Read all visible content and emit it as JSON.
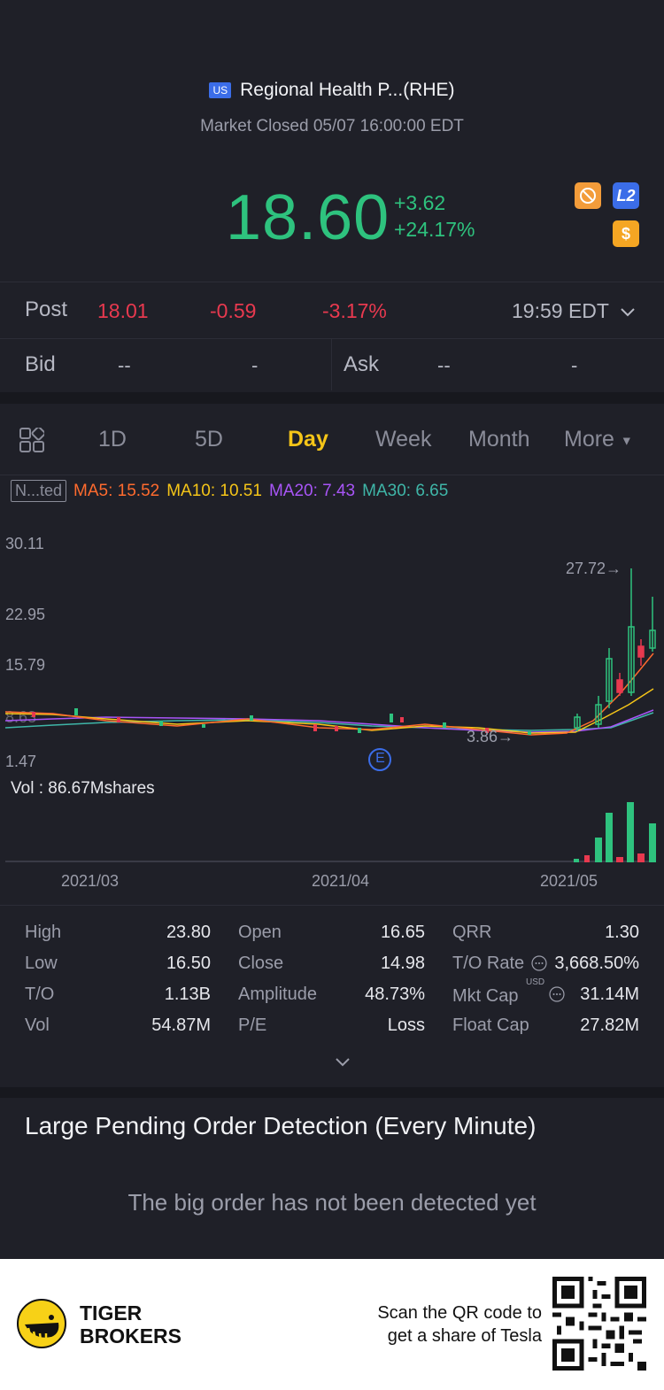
{
  "header": {
    "market_badge": "US",
    "title": "Regional Health P...(RHE)",
    "status": "Market Closed 05/07 16:00:00 EDT",
    "price": "18.60",
    "change_abs": "+3.62",
    "change_pct": "+24.17%",
    "icons": [
      "no-trade-icon",
      "level2-icon",
      "dollar-icon"
    ],
    "l2_label": "L2",
    "dollar_label": "$"
  },
  "post": {
    "label": "Post",
    "price": "18.01",
    "change": "-0.59",
    "pct": "-3.17%",
    "time": "19:59 EDT"
  },
  "bidask": {
    "bid_label": "Bid",
    "bid_price": "--",
    "bid_size": "-",
    "ask_label": "Ask",
    "ask_price": "--",
    "ask_size": "-"
  },
  "tabs": [
    "1D",
    "5D",
    "Day",
    "Week",
    "Month",
    "More"
  ],
  "active_tab": "Day",
  "indicators": {
    "adjust": "N...ted",
    "ma5": "MA5: 15.52",
    "ma10": "MA10: 10.51",
    "ma20": "MA20: 7.43",
    "ma30": "MA30: 6.65",
    "colors": {
      "ma5": "#ff6b2e",
      "ma10": "#f5c518",
      "ma20": "#a855f7",
      "ma30": "#3fb6a8"
    }
  },
  "chart_data": {
    "type": "candlestick",
    "y_ticks": [
      "30.11",
      "22.95",
      "15.79",
      "8.63",
      "1.47"
    ],
    "max_label": "27.72",
    "min_label": "3.86",
    "event_marker": "E",
    "x_ticks": [
      "2021/03",
      "2021/04",
      "2021/05"
    ],
    "volume_label": "Vol  : 86.67Mshares"
  },
  "stats": [
    {
      "k": "High",
      "v": "23.80"
    },
    {
      "k": "Low",
      "v": "16.50"
    },
    {
      "k": "T/O",
      "v": "1.13B"
    },
    {
      "k": "Vol",
      "v": "54.87M"
    },
    {
      "k": "Open",
      "v": "16.65"
    },
    {
      "k": "Close",
      "v": "14.98"
    },
    {
      "k": "Amplitude",
      "v": "48.73%"
    },
    {
      "k": "P/E",
      "v": "Loss"
    },
    {
      "k": "QRR",
      "v": "1.30"
    },
    {
      "k": "T/O Rate",
      "v": "3,668.50%"
    },
    {
      "k": "Mkt Cap",
      "v": "31.14M"
    },
    {
      "k": "Float Cap",
      "v": "27.82M"
    }
  ],
  "mkt_cap_unit": "USD",
  "large_orders": {
    "title": "Large Pending Order Detection (Every Minute)",
    "empty": "The big order has not been detected yet"
  },
  "footer": {
    "brand_line1": "TIGER",
    "brand_line2": "BROKERS",
    "promo_line1": "Scan the QR code to",
    "promo_line2": "get a share of Tesla"
  }
}
